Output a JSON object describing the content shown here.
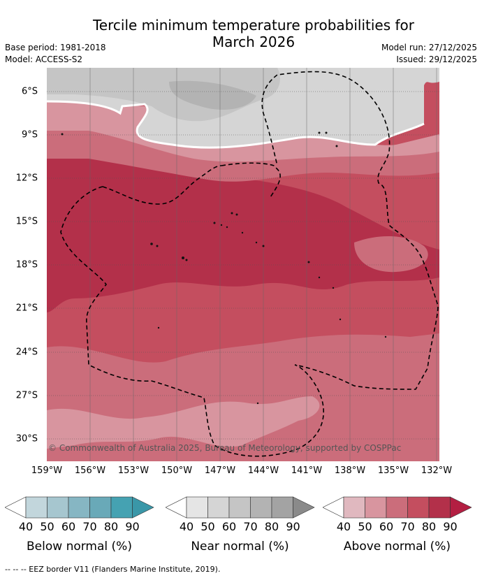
{
  "title": "Tercile minimum temperature probabilities for March 2026",
  "title_line1": "Tercile minimum temperature probabilities for",
  "title_line2": "March 2026",
  "base_period": "Base period: 1981-2018",
  "model": "Model: ACCESS-S2",
  "model_run": "Model run: 27/12/2025",
  "issued": "Issued: 29/12/2025",
  "lat_labels": [
    "6°S",
    "9°S",
    "12°S",
    "15°S",
    "18°S",
    "21°S",
    "24°S",
    "27°S",
    "30°S"
  ],
  "lon_labels": [
    "159°W",
    "156°W",
    "153°W",
    "150°W",
    "147°W",
    "144°W",
    "141°W",
    "138°W",
    "135°W",
    "132°W"
  ],
  "copyright": "© Commonwealth of Australia 2025, Bureau of Meteorology, supported by COSPPac",
  "legend": {
    "below": {
      "label": "Below normal (%)",
      "ticks": [
        "40",
        "50",
        "60",
        "70",
        "80",
        "90"
      ],
      "colors": [
        "#ffffff",
        "#c2d6dc",
        "#a6c6cf",
        "#86b6c3",
        "#69a9b8",
        "#45a2b2",
        "#3a97a8"
      ]
    },
    "near": {
      "label": "Near normal (%)",
      "ticks": [
        "40",
        "50",
        "60",
        "70",
        "80",
        "90"
      ],
      "colors": [
        "#ffffff",
        "#e5e5e5",
        "#d5d5d5",
        "#c5c5c5",
        "#b3b3b3",
        "#a3a3a3",
        "#8a8a8a"
      ]
    },
    "above": {
      "label": "Above normal (%)",
      "ticks": [
        "40",
        "50",
        "60",
        "70",
        "80",
        "90"
      ],
      "colors": [
        "#ffffff",
        "#e0b8bf",
        "#d8959f",
        "#cb6d7b",
        "#c44e5f",
        "#b3304a",
        "#b31f42"
      ]
    }
  },
  "footnote": "-- -- -- EEZ border V11 (Flanders Marine Institute, 2019).",
  "colors": {
    "above_50_60": "#d8959f",
    "above_60_70": "#cb6d7b",
    "above_70_80": "#c44e5f",
    "above_80_90": "#b3304a",
    "near_50_60": "#d5d5d5",
    "near_60_70": "#c5c5c5",
    "near_70_80": "#b3b3b3",
    "eez_border": "#000000"
  }
}
